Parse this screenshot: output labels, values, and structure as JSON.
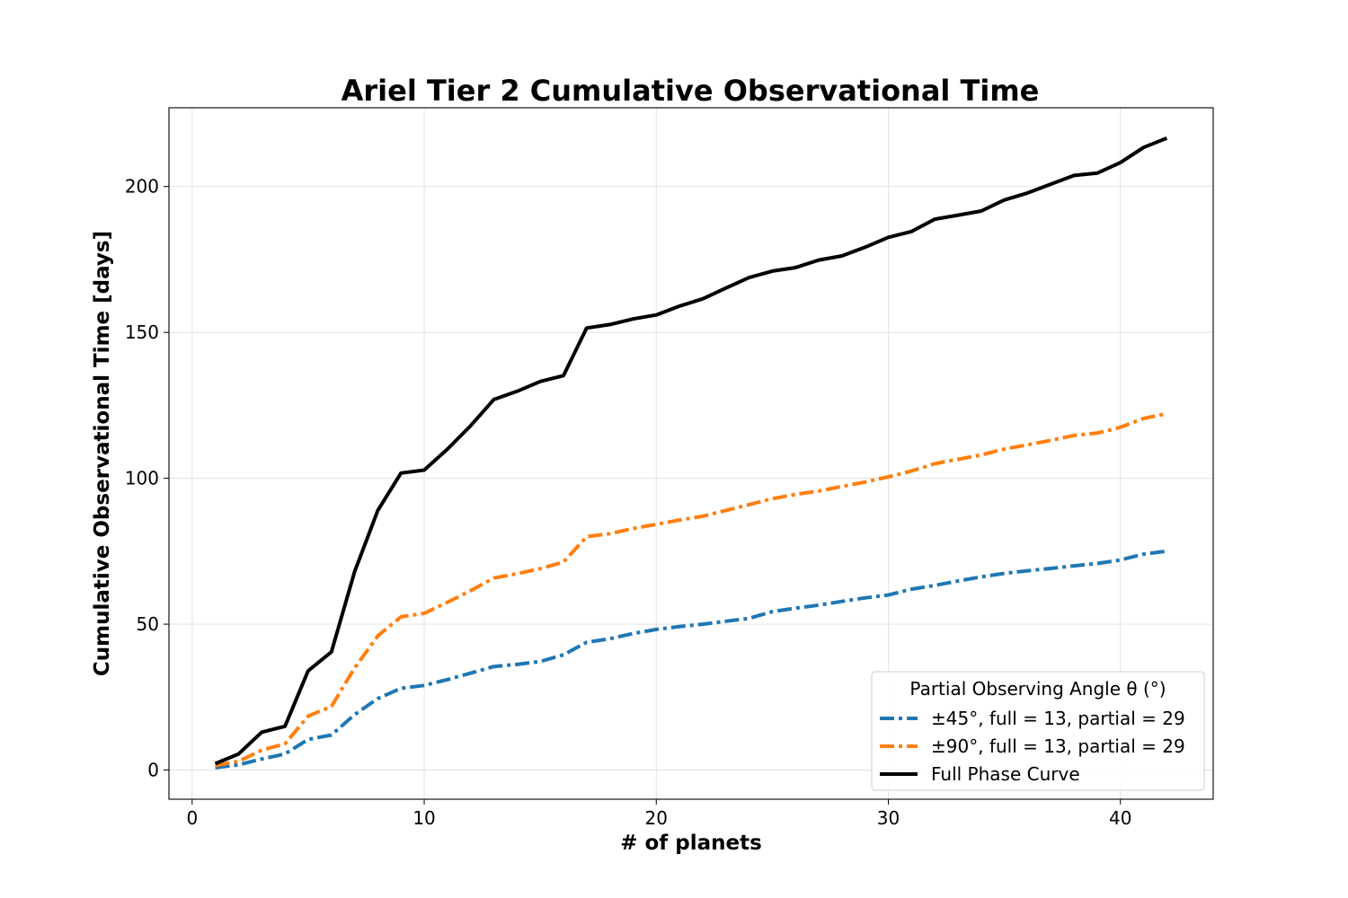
{
  "chart_data": {
    "type": "line",
    "title": "Ariel Tier 2 Cumulative Observational Time",
    "xlabel": "# of planets",
    "ylabel": "Cumulative Observational Time [days]",
    "xlim": [
      -1,
      44
    ],
    "ylim": [
      -10,
      227
    ],
    "xticks": [
      0,
      10,
      20,
      30,
      40
    ],
    "yticks": [
      0,
      50,
      100,
      150,
      200
    ],
    "grid": true,
    "legend_placement": "lower-right",
    "legend_title": "Partial Observing Angle θ (°)",
    "x": [
      1,
      2,
      3,
      4,
      5,
      6,
      7,
      8,
      9,
      10,
      11,
      12,
      13,
      14,
      15,
      16,
      17,
      18,
      19,
      20,
      21,
      22,
      23,
      24,
      25,
      26,
      27,
      28,
      29,
      30,
      31,
      32,
      33,
      34,
      35,
      36,
      37,
      38,
      39,
      40,
      41,
      42
    ],
    "series": [
      {
        "name": "±45°, full = 13, partial = 29",
        "color": "#1f77b4",
        "style": "dashdot",
        "values": [
          0.8,
          1.8,
          3.8,
          5.5,
          10.5,
          12,
          19,
          24.5,
          28,
          29,
          31,
          33.2,
          35.5,
          36.2,
          37.2,
          39.5,
          43.8,
          45,
          46.8,
          48.2,
          49.2,
          50,
          51,
          52,
          54.3,
          55.5,
          56.5,
          57.8,
          59,
          60,
          62,
          63.3,
          64.8,
          66.2,
          67.4,
          68.3,
          69.1,
          70,
          70.8,
          72,
          74,
          75
        ]
      },
      {
        "name": "±90°, full = 13, partial = 29",
        "color": "#ff7f0e",
        "style": "dashdot",
        "values": [
          1.5,
          3,
          6.8,
          9,
          18.5,
          21.8,
          35,
          46,
          52.5,
          53.7,
          57.5,
          61.5,
          65.8,
          67.3,
          69,
          71.3,
          80,
          81,
          82.8,
          84.2,
          85.7,
          87,
          89,
          91,
          93,
          94.5,
          95.6,
          97.2,
          98.7,
          100.5,
          102.5,
          105,
          106.5,
          108,
          110,
          111.5,
          113,
          114.7,
          115.5,
          117.5,
          120.5,
          122.2
        ]
      },
      {
        "name": "Full Phase Curve",
        "color": "#000000",
        "style": "solid",
        "values": [
          2.2,
          5.5,
          13,
          15,
          34,
          40.5,
          68,
          89,
          101.8,
          102.8,
          110,
          118,
          127,
          129.8,
          133.2,
          135.2,
          151.5,
          152.7,
          154.6,
          156,
          159,
          161.5,
          165.2,
          168.8,
          171,
          172.2,
          174.8,
          176.2,
          179.2,
          182.6,
          184.6,
          188.8,
          190.2,
          191.6,
          195.4,
          197.8,
          200.8,
          203.8,
          204.6,
          208.2,
          213.4,
          216.6
        ]
      }
    ]
  }
}
